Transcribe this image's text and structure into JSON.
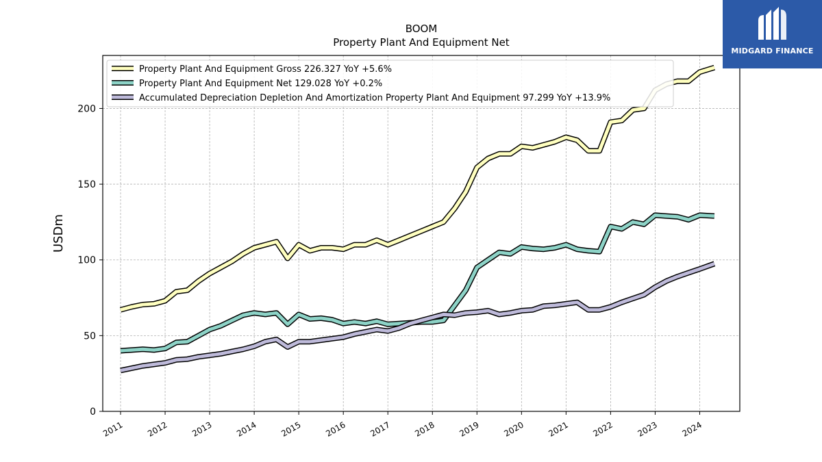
{
  "brand": {
    "name": "MIDGARD FINANCE",
    "background": "#2c5aa8"
  },
  "chart_data": {
    "type": "line",
    "title": "BOOM",
    "subtitle": "Property Plant And Equipment Net",
    "ylabel": "USDm",
    "xlabel": "",
    "ylim": [
      0,
      235
    ],
    "yticks": [
      0,
      50,
      100,
      150,
      200
    ],
    "xlim": [
      2010.6,
      2024.9
    ],
    "xticks": [
      "2011",
      "2012",
      "2013",
      "2014",
      "2015",
      "2016",
      "2017",
      "2018",
      "2019",
      "2020",
      "2021",
      "2022",
      "2023",
      "2024"
    ],
    "grid": true,
    "legend_position": "top-left",
    "series": [
      {
        "name": "Property Plant And Equipment Gross",
        "legend": "Property Plant And Equipment Gross  226.327 YoY +5.6%",
        "color": "#ffffbf",
        "points": [
          [
            2011.0,
            67
          ],
          [
            2011.25,
            69
          ],
          [
            2011.5,
            70.5
          ],
          [
            2011.75,
            71
          ],
          [
            2012.0,
            73
          ],
          [
            2012.25,
            79
          ],
          [
            2012.5,
            80
          ],
          [
            2012.75,
            86
          ],
          [
            2013.0,
            91
          ],
          [
            2013.25,
            95
          ],
          [
            2013.5,
            99
          ],
          [
            2013.75,
            104
          ],
          [
            2014.0,
            108
          ],
          [
            2014.25,
            110
          ],
          [
            2014.5,
            112
          ],
          [
            2014.75,
            101
          ],
          [
            2015.0,
            110
          ],
          [
            2015.25,
            106
          ],
          [
            2015.5,
            108
          ],
          [
            2015.75,
            108
          ],
          [
            2016.0,
            107
          ],
          [
            2016.25,
            110
          ],
          [
            2016.5,
            110
          ],
          [
            2016.75,
            113
          ],
          [
            2017.0,
            110
          ],
          [
            2017.25,
            113
          ],
          [
            2017.5,
            116
          ],
          [
            2017.75,
            119
          ],
          [
            2018.0,
            122
          ],
          [
            2018.25,
            125
          ],
          [
            2018.5,
            134
          ],
          [
            2018.75,
            145
          ],
          [
            2019.0,
            161
          ],
          [
            2019.25,
            167
          ],
          [
            2019.5,
            170
          ],
          [
            2019.75,
            170
          ],
          [
            2020.0,
            175
          ],
          [
            2020.25,
            174
          ],
          [
            2020.5,
            176
          ],
          [
            2020.75,
            178
          ],
          [
            2021.0,
            181
          ],
          [
            2021.25,
            179
          ],
          [
            2021.5,
            172
          ],
          [
            2021.75,
            172
          ],
          [
            2022.0,
            191
          ],
          [
            2022.25,
            192
          ],
          [
            2022.5,
            199
          ],
          [
            2022.75,
            200
          ],
          [
            2023.0,
            212
          ],
          [
            2023.25,
            216
          ],
          [
            2023.5,
            218
          ],
          [
            2023.75,
            218
          ],
          [
            2024.0,
            224
          ],
          [
            2024.33,
            227
          ]
        ]
      },
      {
        "name": "Property Plant And Equipment Net",
        "legend": "Property Plant And Equipment Net  129.028 YoY +0.2%",
        "color": "#8dd3c7",
        "points": [
          [
            2011.0,
            40
          ],
          [
            2011.25,
            40.5
          ],
          [
            2011.5,
            41
          ],
          [
            2011.75,
            40.5
          ],
          [
            2012.0,
            41.5
          ],
          [
            2012.25,
            45.5
          ],
          [
            2012.5,
            46
          ],
          [
            2012.75,
            50
          ],
          [
            2013.0,
            54
          ],
          [
            2013.25,
            56.5
          ],
          [
            2013.5,
            60
          ],
          [
            2013.75,
            63.5
          ],
          [
            2014.0,
            65
          ],
          [
            2014.25,
            64
          ],
          [
            2014.5,
            65
          ],
          [
            2014.75,
            57.5
          ],
          [
            2015.0,
            64
          ],
          [
            2015.25,
            61
          ],
          [
            2015.5,
            61.5
          ],
          [
            2015.75,
            60.5
          ],
          [
            2016.0,
            58
          ],
          [
            2016.25,
            59
          ],
          [
            2016.5,
            58
          ],
          [
            2016.75,
            59.5
          ],
          [
            2017.0,
            57.5
          ],
          [
            2017.25,
            58
          ],
          [
            2017.5,
            58.5
          ],
          [
            2017.75,
            59
          ],
          [
            2018.0,
            59
          ],
          [
            2018.25,
            60
          ],
          [
            2018.5,
            70
          ],
          [
            2018.75,
            80
          ],
          [
            2019.0,
            95
          ],
          [
            2019.25,
            100
          ],
          [
            2019.5,
            105
          ],
          [
            2019.75,
            104
          ],
          [
            2020.0,
            108.5
          ],
          [
            2020.25,
            107.5
          ],
          [
            2020.5,
            107
          ],
          [
            2020.75,
            108
          ],
          [
            2021.0,
            110
          ],
          [
            2021.25,
            107
          ],
          [
            2021.5,
            106
          ],
          [
            2021.75,
            105.5
          ],
          [
            2022.0,
            122
          ],
          [
            2022.25,
            120.5
          ],
          [
            2022.5,
            125
          ],
          [
            2022.75,
            123.5
          ],
          [
            2023.0,
            129.5
          ],
          [
            2023.25,
            129
          ],
          [
            2023.5,
            128.5
          ],
          [
            2023.75,
            126.5
          ],
          [
            2024.0,
            129.5
          ],
          [
            2024.33,
            129
          ]
        ]
      },
      {
        "name": "Accumulated Depreciation Depletion And Amortization Property Plant And Equipment",
        "legend": "Accumulated Depreciation Depletion And Amortization Property Plant And Equipment  97.299 YoY +13.9%",
        "color": "#bebada",
        "points": [
          [
            2011.0,
            27
          ],
          [
            2011.25,
            28.5
          ],
          [
            2011.5,
            30
          ],
          [
            2011.75,
            31
          ],
          [
            2012.0,
            32
          ],
          [
            2012.25,
            34
          ],
          [
            2012.5,
            34.5
          ],
          [
            2012.75,
            36
          ],
          [
            2013.0,
            37
          ],
          [
            2013.25,
            38
          ],
          [
            2013.5,
            39.5
          ],
          [
            2013.75,
            41
          ],
          [
            2014.0,
            43
          ],
          [
            2014.25,
            46
          ],
          [
            2014.5,
            47.5
          ],
          [
            2014.75,
            42.5
          ],
          [
            2015.0,
            46
          ],
          [
            2015.25,
            46
          ],
          [
            2015.5,
            47
          ],
          [
            2015.75,
            48
          ],
          [
            2016.0,
            49
          ],
          [
            2016.25,
            51
          ],
          [
            2016.5,
            52.5
          ],
          [
            2016.75,
            54
          ],
          [
            2017.0,
            53
          ],
          [
            2017.25,
            55
          ],
          [
            2017.5,
            58
          ],
          [
            2017.75,
            60
          ],
          [
            2018.0,
            62
          ],
          [
            2018.25,
            64
          ],
          [
            2018.5,
            63.5
          ],
          [
            2018.75,
            65
          ],
          [
            2019.0,
            65.5
          ],
          [
            2019.25,
            66.5
          ],
          [
            2019.5,
            64
          ],
          [
            2019.75,
            65
          ],
          [
            2020.0,
            66.5
          ],
          [
            2020.25,
            67
          ],
          [
            2020.5,
            69.5
          ],
          [
            2020.75,
            70
          ],
          [
            2021.0,
            71
          ],
          [
            2021.25,
            72
          ],
          [
            2021.5,
            67
          ],
          [
            2021.75,
            67
          ],
          [
            2022.0,
            69
          ],
          [
            2022.25,
            72
          ],
          [
            2022.5,
            74.5
          ],
          [
            2022.75,
            77
          ],
          [
            2023.0,
            82
          ],
          [
            2023.25,
            86
          ],
          [
            2023.5,
            89
          ],
          [
            2023.75,
            91.5
          ],
          [
            2024.0,
            94
          ],
          [
            2024.33,
            97.5
          ]
        ]
      }
    ]
  }
}
